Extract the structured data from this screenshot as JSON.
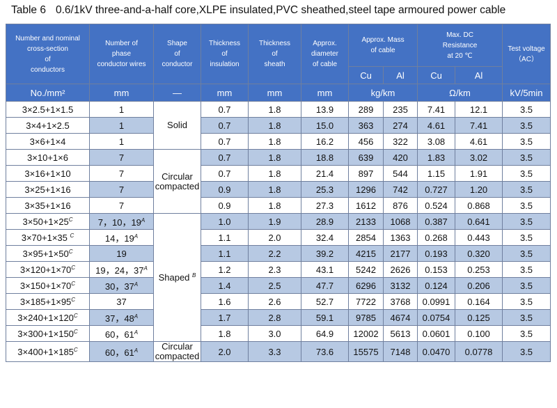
{
  "title": {
    "number": "Table 6",
    "text": "0.6/1kV three-and-a-half core,XLPE insulated,PVC sheathed,steel tape armoured power cable"
  },
  "headers": {
    "section": [
      "Number and nominal",
      "cross-section",
      "of",
      "conductors"
    ],
    "wires": [
      "Number of",
      "phase",
      "conductor wires"
    ],
    "shape": [
      "Shape",
      "of",
      "conductor"
    ],
    "insulation": [
      "Thickness",
      "of",
      "insulation"
    ],
    "sheath": [
      "Thickness",
      "of",
      "sheath"
    ],
    "diameter": [
      "Approx.",
      "diameter",
      "of cable"
    ],
    "mass": [
      "Approx. Mass",
      "of cable"
    ],
    "resistance": [
      "Max. DC",
      "Resistance",
      "at 20 ℃"
    ],
    "voltage": [
      "Test voltage",
      "（AC）"
    ],
    "cu": "Cu",
    "al": "Al"
  },
  "units": {
    "section": "No./mm²",
    "wires": "mm",
    "shape": "—",
    "insulation": "mm",
    "sheath": "mm",
    "diameter": "mm",
    "mass": "kg/km",
    "resistance": "Ω/km",
    "voltage": "kV/5min"
  },
  "shapes": {
    "solid": "Solid",
    "circular_compacted": [
      "Circular",
      "compacted"
    ],
    "shaped": "Shaped",
    "shaped_note": "B",
    "circular_compacted_last": [
      "Circular",
      "compacted"
    ]
  },
  "rows": [
    {
      "section": "3×2.5+1×1.5",
      "section_note": "",
      "wires": "1",
      "wires_note": "",
      "ins": "0.7",
      "sheath": "1.8",
      "dia": "13.9",
      "cu": "289",
      "al": "235",
      "rcu": "7.41",
      "ral": "12.1",
      "v": "3.5"
    },
    {
      "section": "3×4+1×2.5",
      "section_note": "",
      "wires": "1",
      "wires_note": "",
      "ins": "0.7",
      "sheath": "1.8",
      "dia": "15.0",
      "cu": "363",
      "al": "274",
      "rcu": "4.61",
      "ral": "7.41",
      "v": "3.5"
    },
    {
      "section": "3×6+1×4",
      "section_note": "",
      "wires": "1",
      "wires_note": "",
      "ins": "0.7",
      "sheath": "1.8",
      "dia": "16.2",
      "cu": "456",
      "al": "322",
      "rcu": "3.08",
      "ral": "4.61",
      "v": "3.5"
    },
    {
      "section": "3×10+1×6",
      "section_note": "",
      "wires": "7",
      "wires_note": "",
      "ins": "0.7",
      "sheath": "1.8",
      "dia": "18.8",
      "cu": "639",
      "al": "420",
      "rcu": "1.83",
      "ral": "3.02",
      "v": "3.5"
    },
    {
      "section": "3×16+1×10",
      "section_note": "",
      "wires": "7",
      "wires_note": "",
      "ins": "0.7",
      "sheath": "1.8",
      "dia": "21.4",
      "cu": "897",
      "al": "544",
      "rcu": "1.15",
      "ral": "1.91",
      "v": "3.5"
    },
    {
      "section": "3×25+1×16",
      "section_note": "",
      "wires": "7",
      "wires_note": "",
      "ins": "0.9",
      "sheath": "1.8",
      "dia": "25.3",
      "cu": "1296",
      "al": "742",
      "rcu": "0.727",
      "ral": "1.20",
      "v": "3.5"
    },
    {
      "section": "3×35+1×16",
      "section_note": "",
      "wires": "7",
      "wires_note": "",
      "ins": "0.9",
      "sheath": "1.8",
      "dia": "27.3",
      "cu": "1612",
      "al": "876",
      "rcu": "0.524",
      "ral": "0.868",
      "v": "3.5"
    },
    {
      "section": "3×50+1×25",
      "section_note": "C",
      "wires": "7，10，19",
      "wires_note": "A",
      "ins": "1.0",
      "sheath": "1.9",
      "dia": "28.9",
      "cu": "2133",
      "al": "1068",
      "rcu": "0.387",
      "ral": "0.641",
      "v": "3.5"
    },
    {
      "section": "3×70+1×35 ",
      "section_note": "C",
      "wires": "14，19",
      "wires_note": "A",
      "ins": "1.1",
      "sheath": "2.0",
      "dia": "32.4",
      "cu": "2854",
      "al": "1363",
      "rcu": "0.268",
      "ral": "0.443",
      "v": "3.5"
    },
    {
      "section": "3×95+1×50",
      "section_note": "C",
      "wires": "19",
      "wires_note": "",
      "ins": "1.1",
      "sheath": "2.2",
      "dia": "39.2",
      "cu": "4215",
      "al": "2177",
      "rcu": "0.193",
      "ral": "0.320",
      "v": "3.5"
    },
    {
      "section": "3×120+1×70",
      "section_note": "C",
      "wires": "19，24，37",
      "wires_note": "A",
      "ins": "1.2",
      "sheath": "2.3",
      "dia": "43.1",
      "cu": "5242",
      "al": "2626",
      "rcu": "0.153",
      "ral": "0.253",
      "v": "3.5"
    },
    {
      "section": "3×150+1×70",
      "section_note": "C",
      "wires": "30，37",
      "wires_note": "A",
      "ins": "1.4",
      "sheath": "2.5",
      "dia": "47.7",
      "cu": "6296",
      "al": "3132",
      "rcu": "0.124",
      "ral": "0.206",
      "v": "3.5"
    },
    {
      "section": "3×185+1×95",
      "section_note": "C",
      "wires": "37",
      "wires_note": "",
      "ins": "1.6",
      "sheath": "2.6",
      "dia": "52.7",
      "cu": "7722",
      "al": "3768",
      "rcu": "0.0991",
      "ral": "0.164",
      "v": "3.5"
    },
    {
      "section": "3×240+1×120",
      "section_note": "C",
      "wires": "37，48",
      "wires_note": "A",
      "ins": "1.7",
      "sheath": "2.8",
      "dia": "59.1",
      "cu": "9785",
      "al": "4674",
      "rcu": "0.0754",
      "ral": "0.125",
      "v": "3.5"
    },
    {
      "section": "3×300+1×150",
      "section_note": "C",
      "wires": "60，61",
      "wires_note": "A",
      "ins": "1.8",
      "sheath": "3.0",
      "dia": "64.9",
      "cu": "12002",
      "al": "5613",
      "rcu": "0.0601",
      "ral": "0.100",
      "v": "3.5"
    },
    {
      "section": "3×400+1×185",
      "section_note": "C",
      "wires": "60，61",
      "wires_note": "A",
      "ins": "2.0",
      "sheath": "3.3",
      "dia": "73.6",
      "cu": "15575",
      "al": "7148",
      "rcu": "0.0470",
      "ral": "0.0778",
      "v": "3.5"
    }
  ],
  "colors": {
    "header": "#4472c4",
    "shade": "#b7c9e3",
    "border": "#6f7f9e"
  }
}
